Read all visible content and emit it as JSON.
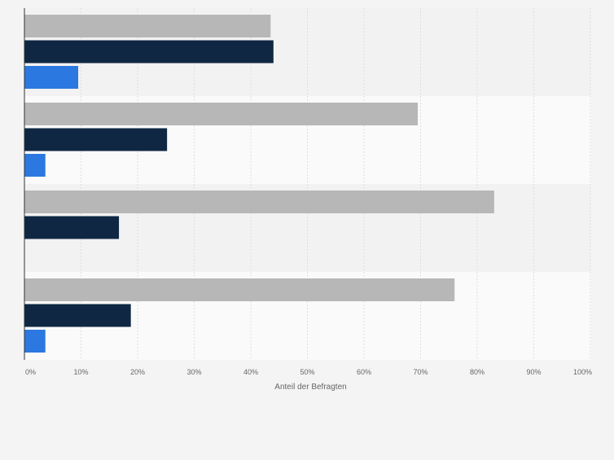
{
  "chart_data": {
    "type": "bar",
    "orientation": "horizontal",
    "categories": [
      "",
      "",
      "",
      ""
    ],
    "series": [
      {
        "color": "#b7b7b7",
        "values": [
          43.5,
          69.5,
          83,
          76
        ]
      },
      {
        "color": "#0f2742",
        "values": [
          44,
          25.2,
          16.7,
          18.8
        ]
      },
      {
        "color": "#2b78e0",
        "values": [
          9.5,
          3.7,
          0,
          3.7
        ]
      }
    ],
    "xlim": [
      0,
      100
    ],
    "x_ticks": [
      "0%",
      "10%",
      "20%",
      "30%",
      "40%",
      "50%",
      "60%",
      "70%",
      "80%",
      "90%",
      "100%"
    ],
    "xlabel": "Anteil der Befragten",
    "grid": true,
    "legend": "none",
    "colors": {
      "page_background": "#f4f4f4",
      "band_light": "#fafafa",
      "band_dark": "#f2f2f2",
      "grid": "#dedede",
      "axis": "#333333",
      "tick_text": "#666666"
    }
  }
}
